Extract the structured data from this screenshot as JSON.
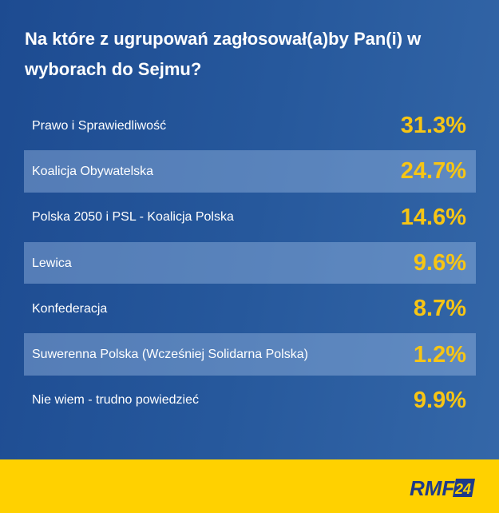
{
  "title": "Na które z ugrupowań zagłosował(a)by Pan(i) w wyborach do Sejmu?",
  "rows": [
    {
      "label": "Prawo i Sprawiedliwość",
      "value": "31.3%"
    },
    {
      "label": "Koalicja Obywatelska",
      "value": "24.7%"
    },
    {
      "label": "Polska 2050 i PSL - Koalicja Polska",
      "value": "14.6%"
    },
    {
      "label": "Lewica",
      "value": "9.6%"
    },
    {
      "label": "Konfederacja",
      "value": "8.7%"
    },
    {
      "label": "Suwerenna Polska (Wcześniej Solidarna Polska)",
      "value": "1.2%"
    },
    {
      "label": "Nie wiem - trudno powiedzieć",
      "value": "9.9%"
    }
  ],
  "logo": {
    "text": "RMF",
    "badge": "24"
  },
  "colors": {
    "background": "#26589c",
    "value": "#f7c514",
    "footer": "#ffd100",
    "logo": "#1e3a8a"
  }
}
